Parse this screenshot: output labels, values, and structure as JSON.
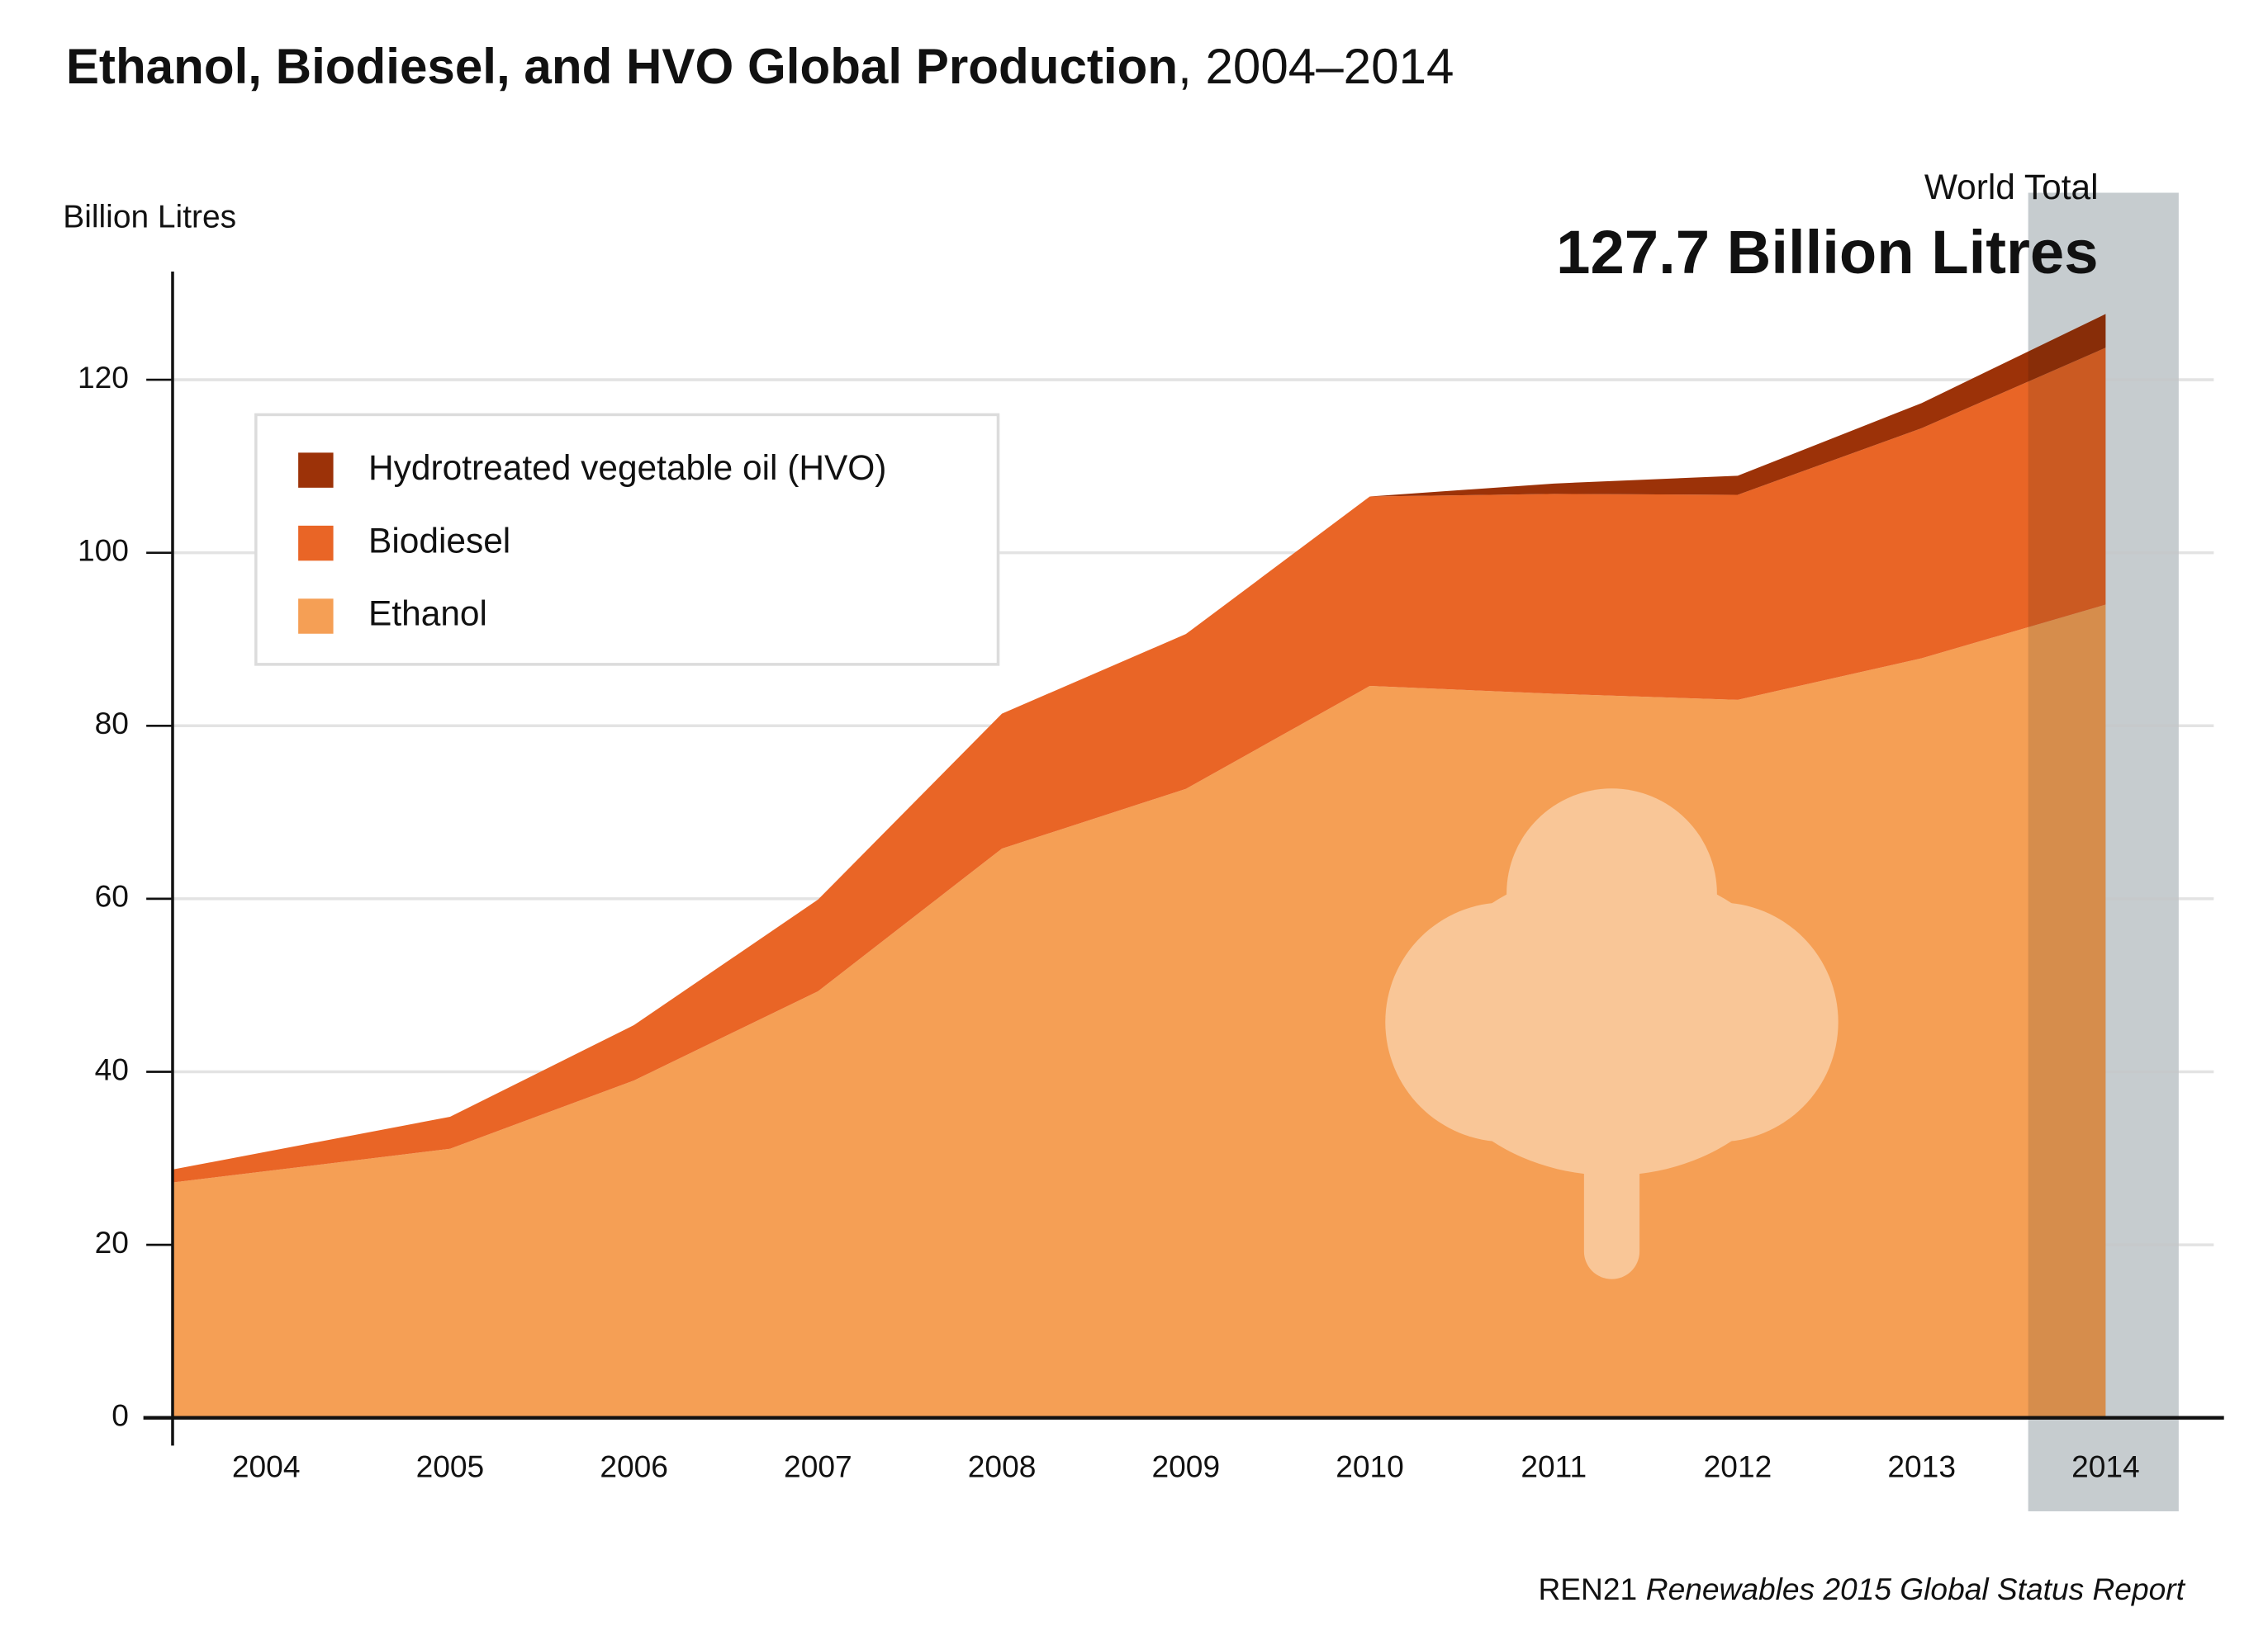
{
  "chart_data": {
    "type": "stacked_area",
    "title": "Ethanol, Biodiesel, and HVO Global Production",
    "title_period": ", 2004–2014",
    "y_label": "Billion Litres",
    "annotation_label": "World Total",
    "annotation_value": "127.7 Billion Litres",
    "source": "REN21",
    "source_title": "Renewables 2015 Global Status Report",
    "categories": [
      "2004",
      "2005",
      "2006",
      "2007",
      "2008",
      "2009",
      "2010",
      "2011",
      "2012",
      "2013",
      "2014"
    ],
    "series": [
      {
        "name": "Ethanol",
        "color": "#f59f55",
        "values": [
          27.2,
          31.1,
          39.0,
          49.3,
          65.8,
          72.7,
          84.6,
          83.7,
          83.0,
          87.8,
          94.0
        ]
      },
      {
        "name": "Biodiesel",
        "color": "#e96526",
        "values": [
          1.5,
          3.7,
          6.4,
          10.6,
          15.6,
          17.9,
          21.9,
          23.1,
          23.7,
          26.6,
          29.7
        ]
      },
      {
        "name": "Hydrotreated vegetable oil (HVO)",
        "color": "#9c3208",
        "values": [
          0,
          0,
          0,
          0,
          0,
          0,
          0,
          1.2,
          2.2,
          2.9,
          3.9
        ]
      }
    ],
    "ylim": [
      0,
      132.5
    ],
    "yticks": [
      0,
      20,
      40,
      60,
      80,
      100,
      120
    ],
    "grid": true
  }
}
